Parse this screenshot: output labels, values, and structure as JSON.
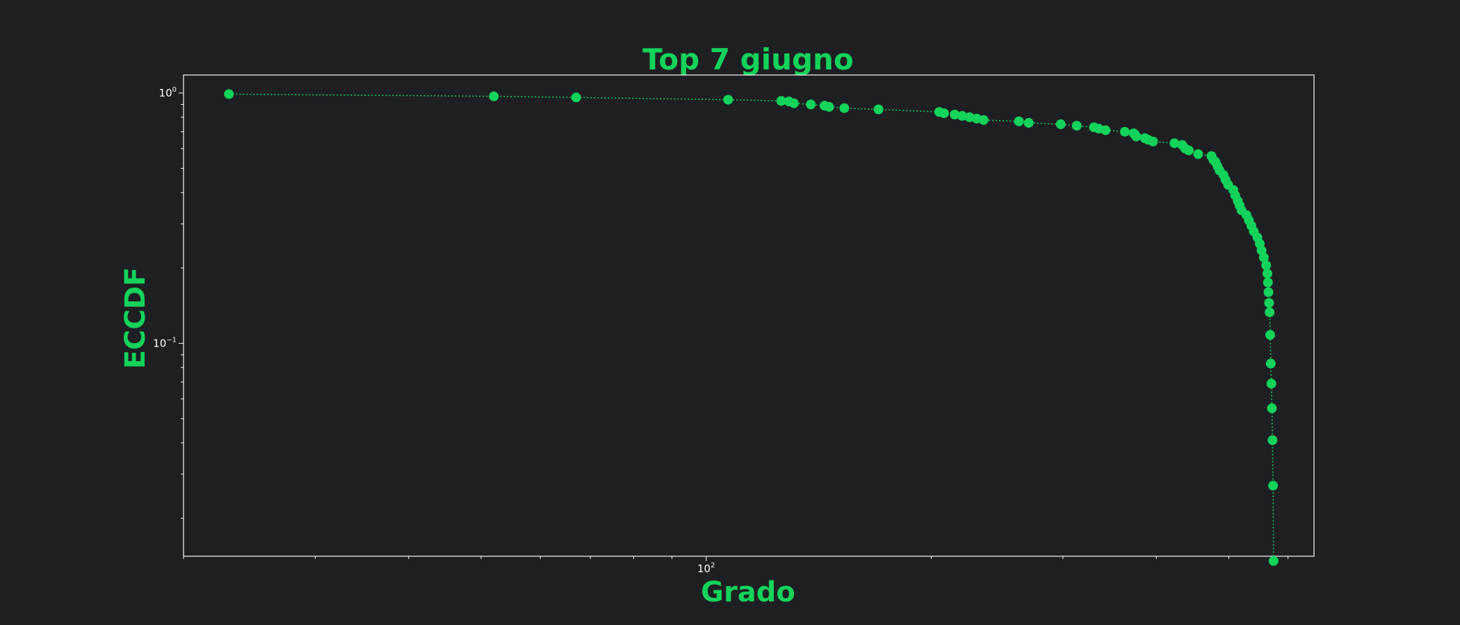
{
  "colors": {
    "background": "#1e1f23",
    "accent": "#14d35a",
    "axes": "#ffffff"
  },
  "chart_data": {
    "type": "line",
    "title": "Top 7 giugno",
    "xlabel": "Grado",
    "ylabel": "ECCDF",
    "x_scale": "log",
    "y_scale": "log",
    "xlim": [
      20,
      650
    ],
    "ylim": [
      0.0141,
      1.18
    ],
    "grid": false,
    "line_style": "dotted",
    "marker": "circle",
    "x_ticks": [
      {
        "value": 100,
        "base": "10",
        "exp": "2"
      }
    ],
    "y_ticks": [
      {
        "value": 1,
        "base": "10",
        "exp": "0"
      },
      {
        "value": 0.1,
        "base": "10",
        "exp": "−1"
      }
    ],
    "series": [
      {
        "points": [
          [
            23.0,
            0.99
          ],
          [
            52.0,
            0.97
          ],
          [
            67.0,
            0.96
          ],
          [
            107.0,
            0.94
          ],
          [
            126.0,
            0.93
          ],
          [
            129.0,
            0.925
          ],
          [
            131.0,
            0.91
          ],
          [
            138.0,
            0.9
          ],
          [
            144.0,
            0.89
          ],
          [
            146.0,
            0.88
          ],
          [
            153.0,
            0.87
          ],
          [
            170.0,
            0.86
          ],
          [
            205.0,
            0.84
          ],
          [
            208.0,
            0.83
          ],
          [
            215.0,
            0.82
          ],
          [
            220.0,
            0.81
          ],
          [
            225.0,
            0.8
          ],
          [
            230.0,
            0.79
          ],
          [
            235.0,
            0.78
          ],
          [
            262.0,
            0.77
          ],
          [
            270.0,
            0.76
          ],
          [
            298.0,
            0.75
          ],
          [
            313.0,
            0.74
          ],
          [
            330.0,
            0.73
          ],
          [
            335.0,
            0.72
          ],
          [
            342.0,
            0.71
          ],
          [
            363.0,
            0.7
          ],
          [
            373.0,
            0.69
          ],
          [
            375.0,
            0.68
          ],
          [
            376.0,
            0.67
          ],
          [
            386.0,
            0.66
          ],
          [
            390.0,
            0.65
          ],
          [
            396.0,
            0.64
          ],
          [
            423.0,
            0.63
          ],
          [
            433.0,
            0.62
          ],
          [
            437.0,
            0.6
          ],
          [
            442.0,
            0.59
          ],
          [
            455.0,
            0.57
          ],
          [
            474.0,
            0.56
          ],
          [
            477.0,
            0.54
          ],
          [
            480.0,
            0.53
          ],
          [
            483.0,
            0.51
          ],
          [
            486.0,
            0.49
          ],
          [
            492.0,
            0.47
          ],
          [
            495.0,
            0.45
          ],
          [
            499.0,
            0.43
          ],
          [
            507.0,
            0.41
          ],
          [
            510.0,
            0.39
          ],
          [
            514.0,
            0.37
          ],
          [
            517.0,
            0.355
          ],
          [
            520.0,
            0.34
          ],
          [
            528.0,
            0.325
          ],
          [
            532.0,
            0.31
          ],
          [
            536.0,
            0.295
          ],
          [
            540.0,
            0.28
          ],
          [
            546.0,
            0.265
          ],
          [
            550.0,
            0.25
          ],
          [
            553.0,
            0.235
          ],
          [
            557.0,
            0.22
          ],
          [
            561.0,
            0.205
          ],
          [
            563.0,
            0.19
          ],
          [
            564.0,
            0.175
          ],
          [
            565.0,
            0.16
          ],
          [
            566.0,
            0.145
          ],
          [
            567.0,
            0.133
          ],
          [
            568.0,
            0.108
          ],
          [
            569.0,
            0.083
          ],
          [
            570.0,
            0.069
          ],
          [
            571.0,
            0.055
          ],
          [
            572.0,
            0.041
          ],
          [
            573.0,
            0.027
          ],
          [
            574.0,
            0.0135
          ]
        ]
      }
    ]
  }
}
